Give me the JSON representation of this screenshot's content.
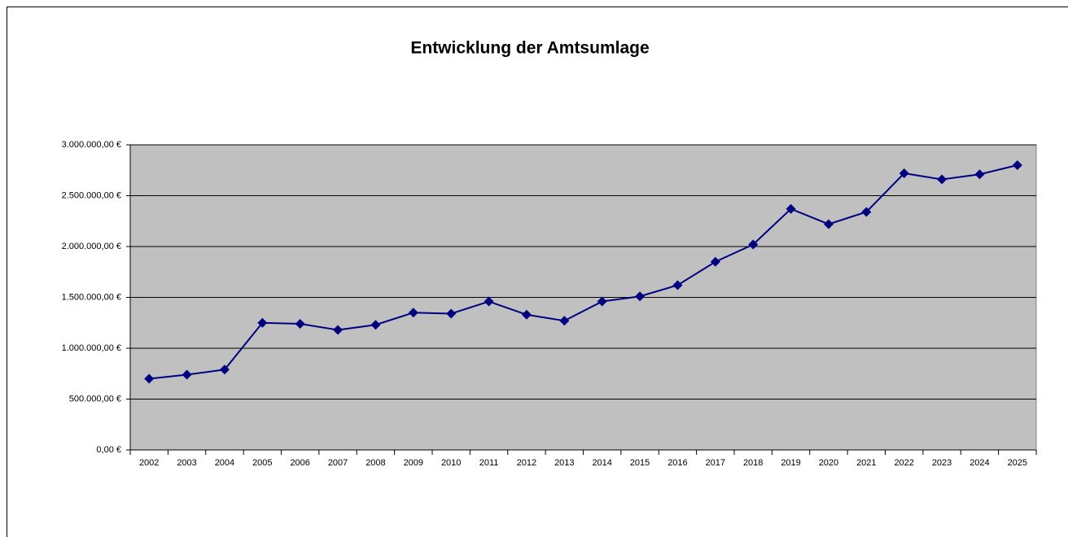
{
  "chart_data": {
    "type": "line",
    "title": "Entwicklung der Amtsumlage",
    "categories": [
      "2002",
      "2003",
      "2004",
      "2005",
      "2006",
      "2007",
      "2008",
      "2009",
      "2010",
      "2011",
      "2012",
      "2013",
      "2014",
      "2015",
      "2016",
      "2017",
      "2018",
      "2019",
      "2020",
      "2021",
      "2022",
      "2023",
      "2024",
      "2025"
    ],
    "series": [
      {
        "name": "Amtsumlage",
        "color": "#000080",
        "values": [
          700000,
          740000,
          790000,
          1250000,
          1240000,
          1180000,
          1230000,
          1350000,
          1340000,
          1460000,
          1330000,
          1270000,
          1460000,
          1510000,
          1620000,
          1850000,
          2020000,
          2370000,
          2220000,
          2340000,
          2720000,
          2660000,
          2710000,
          2800000
        ]
      }
    ],
    "ylim": [
      0,
      3000000
    ],
    "yticks": [
      {
        "value": 0,
        "label": "0,00 €"
      },
      {
        "value": 500000,
        "label": "500.000,00 €"
      },
      {
        "value": 1000000,
        "label": "1.000.000,00 €"
      },
      {
        "value": 1500000,
        "label": "1.500.000,00 €"
      },
      {
        "value": 2000000,
        "label": "2.000.000,00 €"
      },
      {
        "value": 2500000,
        "label": "2.500.000,00 €"
      },
      {
        "value": 3000000,
        "label": "3.000.000,00 €"
      }
    ],
    "grid": true,
    "plot_background": "#c0c0c0"
  }
}
